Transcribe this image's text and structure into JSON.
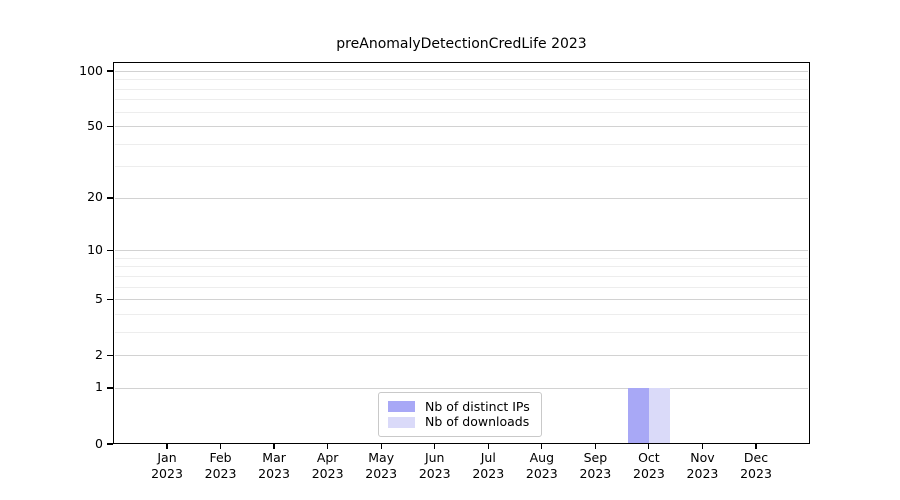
{
  "chart_data": {
    "type": "bar",
    "title": "preAnomalyDetectionCredLife 2023",
    "categories": [
      "Jan",
      "Feb",
      "Mar",
      "Apr",
      "May",
      "Jun",
      "Jul",
      "Aug",
      "Sep",
      "Oct",
      "Nov",
      "Dec"
    ],
    "category_year": "2023",
    "series": [
      {
        "name": "Nb of distinct IPs",
        "color": "#a8a8f6",
        "values": [
          0,
          0,
          0,
          0,
          0,
          0,
          0,
          0,
          0,
          1,
          0,
          0
        ]
      },
      {
        "name": "Nb of downloads",
        "color": "#dadaf9",
        "values": [
          0,
          0,
          0,
          0,
          0,
          0,
          0,
          0,
          0,
          1,
          0,
          0
        ]
      }
    ],
    "xlabel": "",
    "ylabel": "",
    "yscale": "log1p",
    "yticks": [
      0,
      1,
      2,
      5,
      10,
      20,
      50,
      100
    ],
    "yticks_minor": [
      3,
      4,
      6,
      7,
      8,
      9,
      30,
      40,
      60,
      70,
      80,
      90
    ],
    "ylim": [
      0,
      113
    ],
    "grid": "horizontal",
    "legend_position": "inside-bottom-center",
    "colors": {
      "grid_major": "#d2d2d2",
      "grid_minor": "#ededed",
      "axis": "#000000",
      "background": "#ffffff"
    }
  }
}
